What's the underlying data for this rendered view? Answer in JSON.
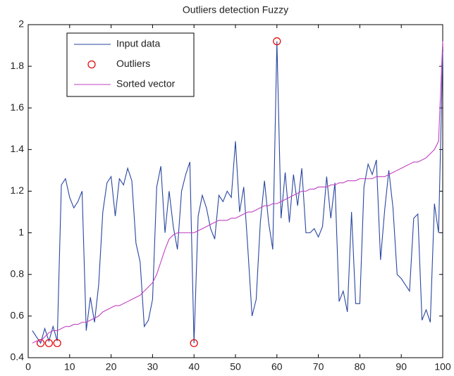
{
  "chart_data": {
    "type": "line",
    "title": "Outliers detection Fuzzy",
    "x": [
      1,
      2,
      3,
      4,
      5,
      6,
      7,
      8,
      9,
      10,
      11,
      12,
      13,
      14,
      15,
      16,
      17,
      18,
      19,
      20,
      21,
      22,
      23,
      24,
      25,
      26,
      27,
      28,
      29,
      30,
      31,
      32,
      33,
      34,
      35,
      36,
      37,
      38,
      39,
      40,
      41,
      42,
      43,
      44,
      45,
      46,
      47,
      48,
      49,
      50,
      51,
      52,
      53,
      54,
      55,
      56,
      57,
      58,
      59,
      60,
      61,
      62,
      63,
      64,
      65,
      66,
      67,
      68,
      69,
      70,
      71,
      72,
      73,
      74,
      75,
      76,
      77,
      78,
      79,
      80,
      81,
      82,
      83,
      84,
      85,
      86,
      87,
      88,
      89,
      90,
      91,
      92,
      93,
      94,
      95,
      96,
      97,
      98,
      99,
      100
    ],
    "series": [
      {
        "name": "Input data",
        "color": "#2a46a0",
        "style": "line",
        "values": [
          0.53,
          0.5,
          0.47,
          0.54,
          0.48,
          0.55,
          0.48,
          1.23,
          1.26,
          1.17,
          1.12,
          1.15,
          1.2,
          0.53,
          0.69,
          0.57,
          0.75,
          1.1,
          1.24,
          1.27,
          1.08,
          1.26,
          1.23,
          1.31,
          1.25,
          0.95,
          0.86,
          0.55,
          0.58,
          0.68,
          1.22,
          1.32,
          1.0,
          1.2,
          1.03,
          0.92,
          1.2,
          1.28,
          1.34,
          0.47,
          1.08,
          1.18,
          1.12,
          1.02,
          0.97,
          1.18,
          1.15,
          1.2,
          1.17,
          1.44,
          1.1,
          1.22,
          0.92,
          0.6,
          0.68,
          1.05,
          1.25,
          1.05,
          0.92,
          1.92,
          1.07,
          1.29,
          1.05,
          1.28,
          1.13,
          1.31,
          1.0,
          1.0,
          1.02,
          0.98,
          1.03,
          1.27,
          1.07,
          1.24,
          0.67,
          0.72,
          0.62,
          1.1,
          0.66,
          0.66,
          1.22,
          1.33,
          1.28,
          1.35,
          0.87,
          1.11,
          1.3,
          1.12,
          0.8,
          0.78,
          0.75,
          0.72,
          1.07,
          1.09,
          0.58,
          0.63,
          0.57,
          1.14,
          1.0,
          1.87
        ]
      },
      {
        "name": "Outliers",
        "color": "#e00000",
        "style": "marker",
        "x": [
          3,
          5,
          7,
          40,
          60
        ],
        "values": [
          0.47,
          0.47,
          0.47,
          0.47,
          1.92
        ]
      },
      {
        "name": "Sorted vector",
        "color": "#c040c0",
        "style": "line",
        "values": [
          0.47,
          0.48,
          0.48,
          0.5,
          0.52,
          0.53,
          0.53,
          0.54,
          0.55,
          0.55,
          0.56,
          0.56,
          0.57,
          0.57,
          0.58,
          0.59,
          0.6,
          0.62,
          0.63,
          0.64,
          0.65,
          0.65,
          0.66,
          0.67,
          0.68,
          0.69,
          0.7,
          0.72,
          0.74,
          0.76,
          0.8,
          0.86,
          0.92,
          0.97,
          0.99,
          1.0,
          1.0,
          1.0,
          1.0,
          1.0,
          1.01,
          1.02,
          1.03,
          1.04,
          1.05,
          1.06,
          1.06,
          1.06,
          1.07,
          1.07,
          1.08,
          1.09,
          1.1,
          1.1,
          1.11,
          1.12,
          1.13,
          1.13,
          1.14,
          1.14,
          1.15,
          1.16,
          1.17,
          1.18,
          1.19,
          1.2,
          1.2,
          1.21,
          1.21,
          1.22,
          1.22,
          1.22,
          1.23,
          1.23,
          1.24,
          1.24,
          1.25,
          1.25,
          1.25,
          1.26,
          1.26,
          1.26,
          1.26,
          1.27,
          1.27,
          1.27,
          1.28,
          1.29,
          1.3,
          1.31,
          1.32,
          1.33,
          1.34,
          1.34,
          1.35,
          1.36,
          1.38,
          1.4,
          1.44,
          1.92
        ]
      }
    ],
    "xlim": [
      0,
      100
    ],
    "xticks": [
      0,
      10,
      20,
      30,
      40,
      50,
      60,
      70,
      80,
      90,
      100
    ],
    "ylim": [
      0.4,
      2
    ],
    "yticks": [
      0.4,
      0.6,
      0.8,
      1,
      1.2,
      1.4,
      1.6,
      1.8,
      2
    ],
    "grid": false,
    "legend": "northwest"
  }
}
